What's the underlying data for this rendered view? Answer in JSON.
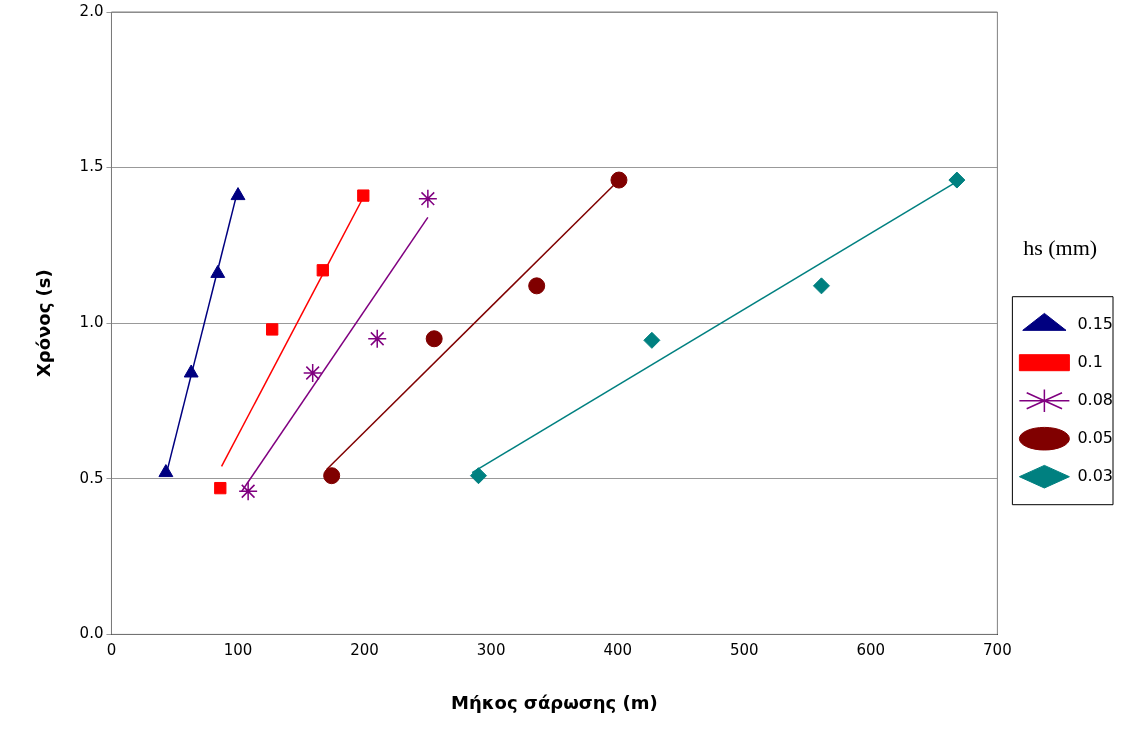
{
  "chart_data": {
    "type": "scatter",
    "xlabel": "Μήκος σάρωσης (m)",
    "ylabel": "Χρόνος (s)",
    "legend_title": "hs (mm)",
    "legend": "right",
    "grid": "y",
    "xlim": [
      0,
      700
    ],
    "xticks": [
      0,
      100,
      200,
      300,
      400,
      500,
      600,
      700
    ],
    "ylim": [
      0,
      2
    ],
    "yticks": [
      {
        "value": 0,
        "label": "0.0"
      },
      {
        "value": 0.5,
        "label": "0.5"
      },
      {
        "value": 1,
        "label": "1.0"
      },
      {
        "value": 1.5,
        "label": "1.5"
      },
      {
        "value": 2,
        "label": "2.0"
      }
    ],
    "series": [
      {
        "name": "0.15",
        "marker": "triangle",
        "color": "#000080",
        "x": [
          43,
          63,
          84,
          100
        ],
        "values": [
          0.52,
          0.84,
          1.16,
          1.41
        ]
      },
      {
        "name": "0.1",
        "marker": "square",
        "color": "#ff0000",
        "x": [
          86,
          127,
          167,
          199
        ],
        "values": [
          0.47,
          0.98,
          1.17,
          1.41
        ]
      },
      {
        "name": "0.08",
        "marker": "cross",
        "color": "#800080",
        "x": [
          108,
          159,
          210,
          250
        ],
        "values": [
          0.46,
          0.84,
          0.95,
          1.4
        ]
      },
      {
        "name": "0.05",
        "marker": "circle",
        "color": "#800000",
        "x": [
          174,
          255,
          336,
          401
        ],
        "values": [
          0.51,
          0.95,
          1.12,
          1.46
        ]
      },
      {
        "name": "0.03",
        "marker": "diamond",
        "color": "#008080",
        "x": [
          290,
          427,
          561,
          668
        ],
        "values": [
          0.51,
          0.945,
          1.12,
          1.46
        ]
      },
      {
        "type": "line",
        "color": "#000080",
        "x": [
          43,
          100
        ],
        "values": [
          0.51,
          1.43
        ]
      },
      {
        "type": "line",
        "color": "#ff0000",
        "x": [
          87,
          201
        ],
        "values": [
          0.54,
          1.42
        ]
      },
      {
        "type": "line",
        "color": "#800080",
        "x": [
          103,
          250
        ],
        "values": [
          0.46,
          1.34
        ]
      },
      {
        "type": "line",
        "color": "#800000",
        "x": [
          170,
          401
        ],
        "values": [
          0.53,
          1.46
        ]
      },
      {
        "type": "line",
        "color": "#008080",
        "x": [
          285,
          668
        ],
        "values": [
          0.52,
          1.455
        ]
      }
    ]
  }
}
